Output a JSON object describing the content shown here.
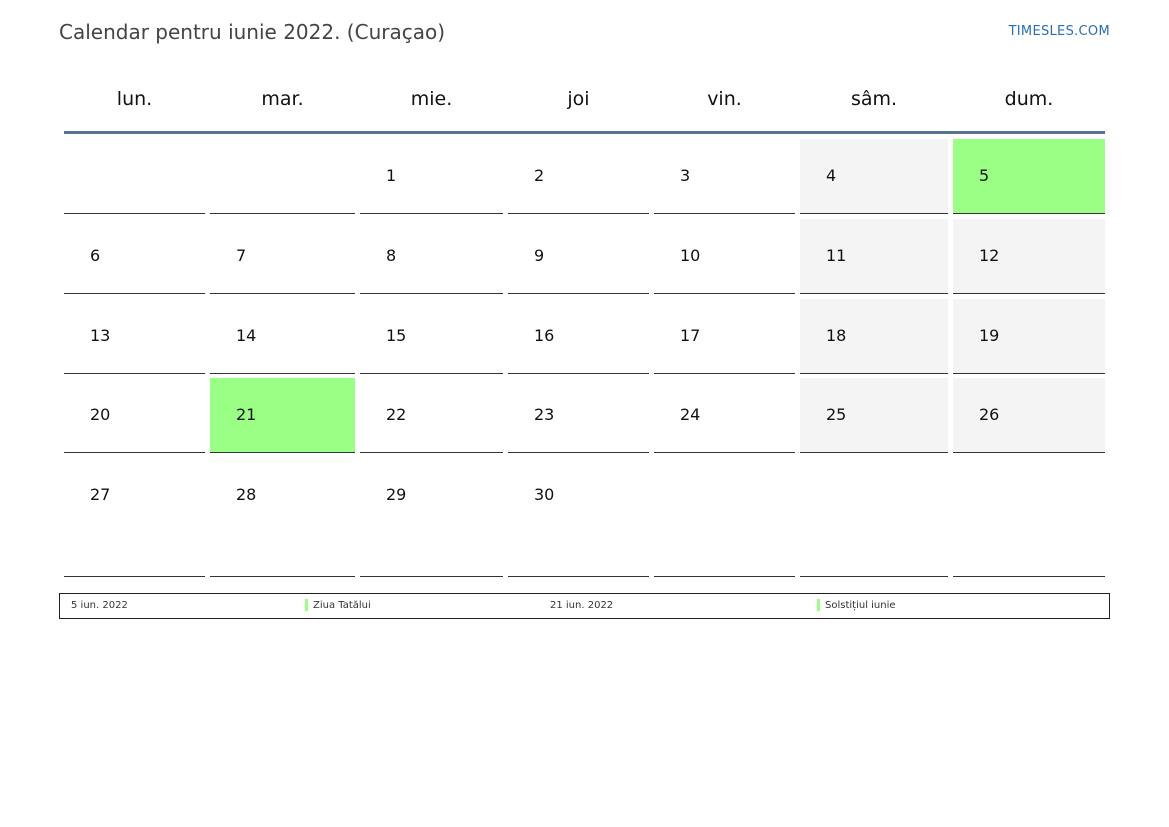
{
  "header": {
    "title": "Calendar pentru iunie 2022. (Curaçao)",
    "brand": "TIMESLES.COM"
  },
  "weekdays": [
    "lun.",
    "mar.",
    "mie.",
    "joi",
    "vin.",
    "sâm.",
    "dum."
  ],
  "weeks": [
    [
      "",
      "",
      "1",
      "2",
      "3",
      "4",
      "5"
    ],
    [
      "6",
      "7",
      "8",
      "9",
      "10",
      "11",
      "12"
    ],
    [
      "13",
      "14",
      "15",
      "16",
      "17",
      "18",
      "19"
    ],
    [
      "20",
      "21",
      "22",
      "23",
      "24",
      "25",
      "26"
    ],
    [
      "27",
      "28",
      "29",
      "30",
      "",
      "",
      ""
    ]
  ],
  "holiday_days": [
    "5",
    "21"
  ],
  "legend": [
    {
      "date": "5 iun. 2022",
      "name": "Ziua Tatălui"
    },
    {
      "date": "21 iun. 2022",
      "name": "Solstițiul iunie"
    }
  ],
  "colors": {
    "holiday": "#99ff85",
    "weekend": "#f4f4f4",
    "header_rule": "#5a7197",
    "brand": "#2a6db5"
  }
}
